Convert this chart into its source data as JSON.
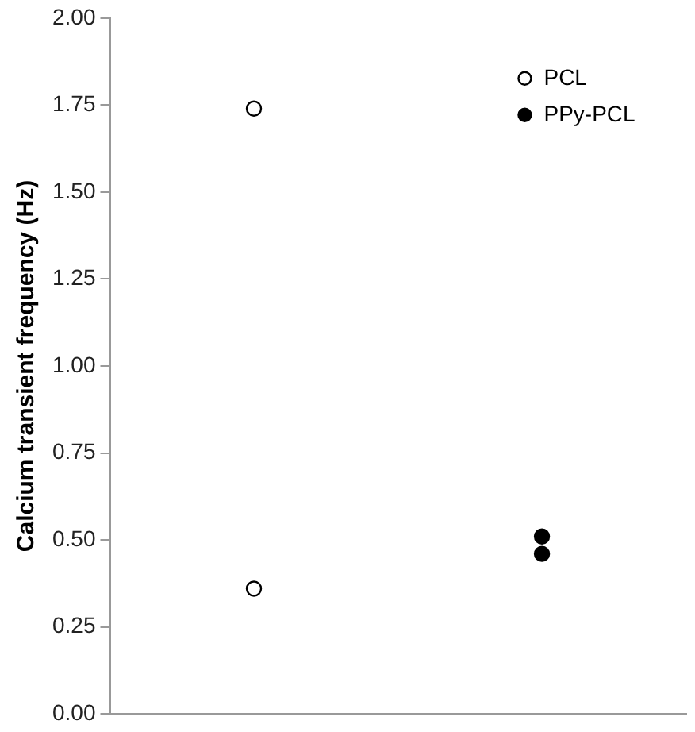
{
  "chart_data": {
    "type": "scatter",
    "ylabel": "Calcium transient frequency (Hz)",
    "categories": [
      null,
      null
    ],
    "ylim": [
      0,
      2
    ],
    "yticks": [
      {
        "value": 0,
        "label": "0.00"
      },
      {
        "value": 0.25,
        "label": "0.25"
      },
      {
        "value": 0.5,
        "label": "0.50"
      },
      {
        "value": 0.75,
        "label": "0.75"
      },
      {
        "value": 1,
        "label": "1.00"
      },
      {
        "value": 1.25,
        "label": "1.25"
      },
      {
        "value": 1.5,
        "label": "1.50"
      },
      {
        "value": 1.75,
        "label": "1.75"
      },
      {
        "value": 2,
        "label": "2.00"
      }
    ],
    "tick_labels": "y",
    "grid": false,
    "legend": "top right",
    "marker": "circle",
    "series": [
      {
        "name": "PCL",
        "color": "#ffffff",
        "values": [
          1.74,
          null
        ]
      },
      {
        "color": "#ffffff",
        "values": [
          0.36,
          null
        ]
      },
      {
        "name": "PPy-PCL",
        "color": "#000000",
        "values": [
          null,
          0.51
        ]
      },
      {
        "color": "#000000",
        "values": [
          null,
          0.46
        ]
      }
    ]
  }
}
